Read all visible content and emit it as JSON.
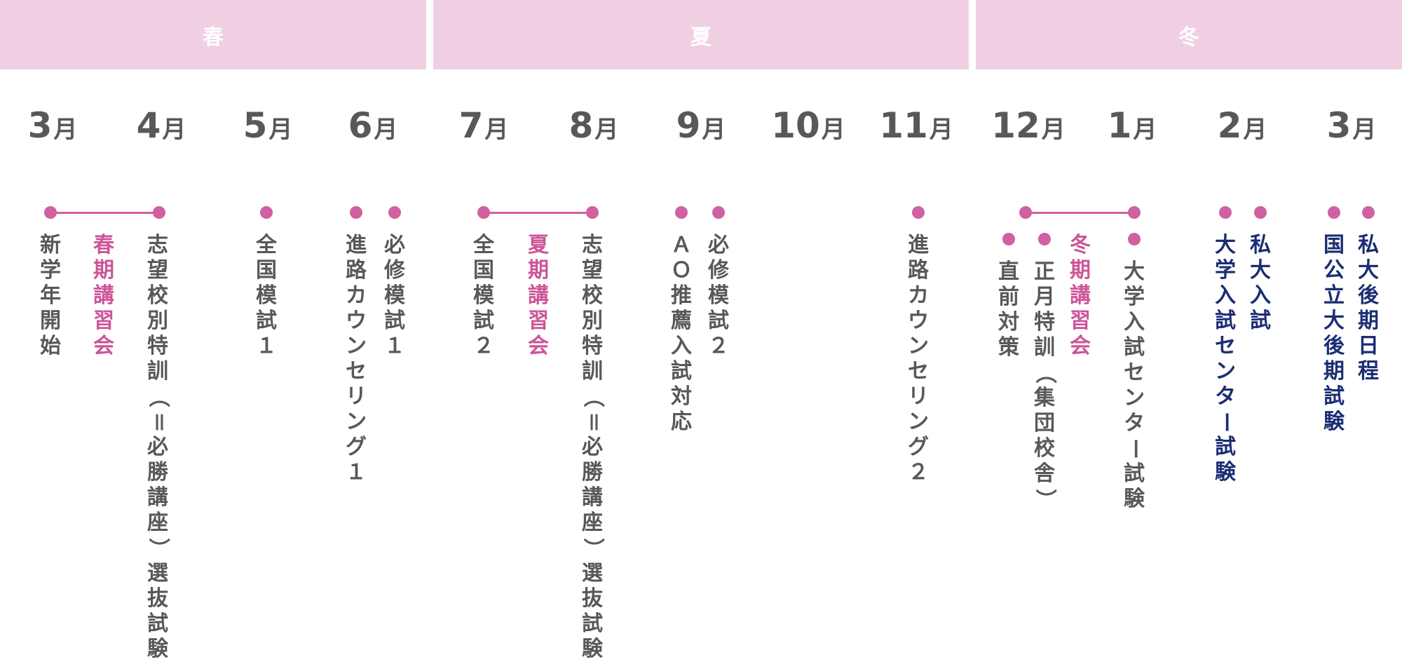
{
  "seasons": [
    {
      "label": "春"
    },
    {
      "label": "夏"
    },
    {
      "label": "冬"
    }
  ],
  "month_unit": "月",
  "months": [
    {
      "num": "3"
    },
    {
      "num": "4"
    },
    {
      "num": "5"
    },
    {
      "num": "6"
    },
    {
      "num": "7"
    },
    {
      "num": "8"
    },
    {
      "num": "9"
    },
    {
      "num": "10"
    },
    {
      "num": "11"
    },
    {
      "num": "12"
    },
    {
      "num": "1"
    },
    {
      "num": "2"
    },
    {
      "num": "3"
    }
  ],
  "events": [
    {
      "text": "新学年開始",
      "tone": "gray"
    },
    {
      "text": "春期講習会",
      "tone": "pink"
    },
    {
      "text": "志望校別特訓（＝必勝講座）選抜試験",
      "tone": "gray"
    },
    {
      "text": "全国模試１",
      "tone": "gray"
    },
    {
      "text": "進路カウンセリング１",
      "tone": "gray"
    },
    {
      "text": "必修模試１",
      "tone": "gray"
    },
    {
      "text": "全国模試２",
      "tone": "gray"
    },
    {
      "text": "夏期講習会",
      "tone": "pink"
    },
    {
      "text": "志望校別特訓（＝必勝講座）選抜試験",
      "tone": "gray"
    },
    {
      "text": "ＡＯ推薦入試対応",
      "tone": "gray"
    },
    {
      "text": "必修模試２",
      "tone": "gray"
    },
    {
      "text": "進路カウンセリング２",
      "tone": "gray"
    },
    {
      "text": "直前対策",
      "tone": "gray"
    },
    {
      "text": "正月特訓（集団校舎）",
      "tone": "gray"
    },
    {
      "text": "冬期講習会",
      "tone": "pink"
    },
    {
      "text": "大学入試センター試験",
      "tone": "gray"
    },
    {
      "text": "大学入試センター試験",
      "tone": "navy"
    },
    {
      "text": "私大入試",
      "tone": "navy"
    },
    {
      "text": "国公立大後期試験",
      "tone": "navy"
    },
    {
      "text": "私大後期日程",
      "tone": "navy"
    }
  ],
  "colors": {
    "season_band": "#f0cfe3",
    "accent": "#d060a0",
    "month_text": "#585858",
    "pink_text": "#cc5599",
    "navy_text": "#1b2d73"
  }
}
